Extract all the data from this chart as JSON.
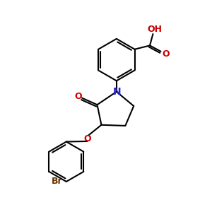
{
  "bg_color": "#ffffff",
  "bond_color": "#000000",
  "n_color": "#2222cc",
  "o_color": "#cc0000",
  "br_color": "#663300",
  "line_width": 1.5,
  "font_size_label": 9,
  "fig_width": 3.0,
  "fig_height": 3.0,
  "dpi": 100,
  "xlim": [
    0,
    10
  ],
  "ylim": [
    0,
    10
  ]
}
